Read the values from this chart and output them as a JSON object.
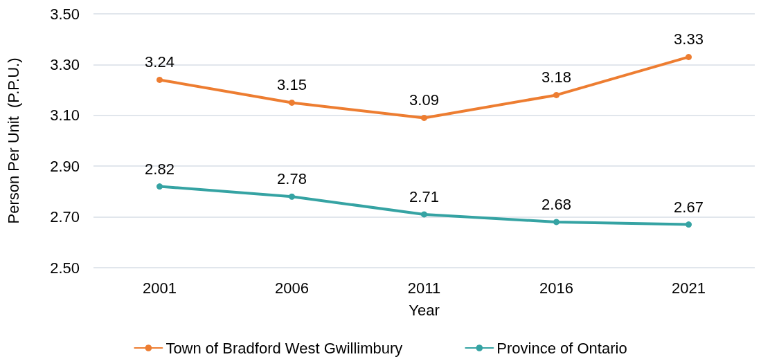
{
  "chart_data": {
    "type": "line",
    "xlabel": "Year",
    "ylabel": "Person Per Unit  (P.P.U.)",
    "categories": [
      "2001",
      "2006",
      "2011",
      "2016",
      "2021"
    ],
    "series": [
      {
        "name": "Town of Bradford West Gwillimbury",
        "color": "#ed7d31",
        "values": [
          3.24,
          3.15,
          3.09,
          3.18,
          3.33
        ]
      },
      {
        "name": "Province of Ontario",
        "color": "#35a3a3",
        "values": [
          2.82,
          2.78,
          2.71,
          2.68,
          2.67
        ]
      }
    ],
    "ylim": [
      2.5,
      3.5
    ],
    "yticks": [
      {
        "value": 2.5,
        "label": "2.50"
      },
      {
        "value": 2.7,
        "label": "2.70"
      },
      {
        "value": 2.9,
        "label": "2.90"
      },
      {
        "value": 3.1,
        "label": "3.10"
      },
      {
        "value": 3.3,
        "label": "3.30"
      },
      {
        "value": 3.5,
        "label": "3.50"
      }
    ],
    "grid": "y",
    "legend": "bottom",
    "marker": "circle",
    "line_style": "solid",
    "data_labels": true
  }
}
